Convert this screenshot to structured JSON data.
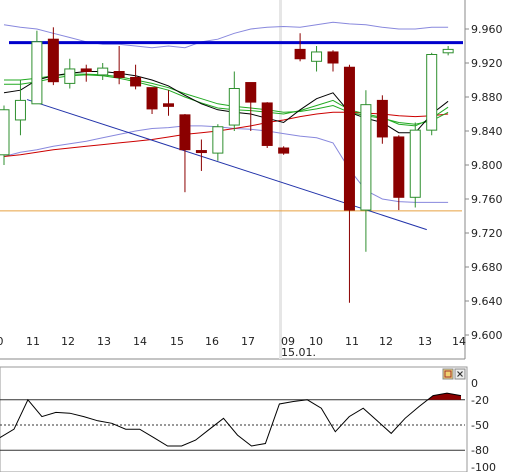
{
  "chart_data": [
    {
      "type": "candlestick",
      "x_ticks": [
        "0",
        "11",
        "12",
        "13",
        "14",
        "15",
        "16",
        "17",
        "09",
        "10",
        "11",
        "12",
        "13",
        "14"
      ],
      "date_label": "15.01.",
      "y_ticks": [
        "9.960",
        "9.920",
        "9.880",
        "9.840",
        "9.800",
        "9.760",
        "9.720",
        "9.680",
        "9.640",
        "9.600"
      ],
      "ylim": [
        9.6,
        9.97
      ],
      "colors": {
        "up": "#2f8f2f",
        "down": "#8b0000",
        "resistance": "#0000cc",
        "trend": "#2233aa",
        "band": "#8888dd",
        "ma_black": "#000000",
        "ma_green": "#22aa22",
        "ma_red": "#cc0000",
        "support": "#e8a040"
      },
      "candles": [
        {
          "o": 9.812,
          "c": 9.865,
          "h": 9.87,
          "l": 9.8
        },
        {
          "o": 9.853,
          "c": 9.876,
          "h": 9.9,
          "l": 9.835
        },
        {
          "o": 9.872,
          "c": 9.945,
          "h": 9.958,
          "l": 9.872
        },
        {
          "o": 9.948,
          "c": 9.898,
          "h": 9.962,
          "l": 9.894
        },
        {
          "o": 9.896,
          "c": 9.913,
          "h": 9.925,
          "l": 9.89
        },
        {
          "o": 9.913,
          "c": 9.91,
          "h": 9.918,
          "l": 9.898
        },
        {
          "o": 9.906,
          "c": 9.914,
          "h": 9.92,
          "l": 9.9
        },
        {
          "o": 9.91,
          "c": 9.903,
          "h": 9.94,
          "l": 9.895
        },
        {
          "o": 9.903,
          "c": 9.893,
          "h": 9.918,
          "l": 9.889
        },
        {
          "o": 9.891,
          "c": 9.866,
          "h": 9.891,
          "l": 9.86
        },
        {
          "o": 9.872,
          "c": 9.869,
          "h": 9.888,
          "l": 9.858
        },
        {
          "o": 9.859,
          "c": 9.818,
          "h": 9.86,
          "l": 9.768
        },
        {
          "o": 9.817,
          "c": 9.815,
          "h": 9.83,
          "l": 9.793
        },
        {
          "o": 9.814,
          "c": 9.845,
          "h": 9.848,
          "l": 9.805
        },
        {
          "o": 9.847,
          "c": 9.89,
          "h": 9.91,
          "l": 9.84
        },
        {
          "o": 9.897,
          "c": 9.874,
          "h": 9.897,
          "l": 9.84
        },
        {
          "o": 9.873,
          "c": 9.823,
          "h": 9.874,
          "l": 9.82
        },
        {
          "o": 9.82,
          "c": 9.814,
          "h": 9.822,
          "l": 9.812
        },
        {
          "o": 9.936,
          "c": 9.925,
          "h": 9.955,
          "l": 9.922
        },
        {
          "o": 9.922,
          "c": 9.933,
          "h": 9.94,
          "l": 9.91
        },
        {
          "o": 9.933,
          "c": 9.92,
          "h": 9.935,
          "l": 9.91
        },
        {
          "o": 9.915,
          "c": 9.747,
          "h": 9.918,
          "l": 9.638
        },
        {
          "o": 9.747,
          "c": 9.871,
          "h": 9.888,
          "l": 9.698
        },
        {
          "o": 9.876,
          "c": 9.833,
          "h": 9.882,
          "l": 9.825
        },
        {
          "o": 9.833,
          "c": 9.762,
          "h": 9.835,
          "l": 9.747
        },
        {
          "o": 9.762,
          "c": 9.841,
          "h": 9.85,
          "l": 9.75
        },
        {
          "o": 9.841,
          "c": 9.93,
          "h": 9.932,
          "l": 9.835
        },
        {
          "o": 9.932,
          "c": 9.936,
          "h": 9.94,
          "l": 9.929
        }
      ],
      "overlays": {
        "resistance": 9.944,
        "support": 9.746,
        "trendline": {
          "from": {
            "i": 1.4,
            "v": 9.877
          },
          "to": {
            "i": 25.7,
            "v": 9.724
          }
        },
        "band_upper": [
          9.965,
          9.962,
          9.96,
          9.955,
          9.95,
          9.945,
          9.942,
          9.942,
          9.94,
          9.938,
          9.94,
          9.938,
          9.945,
          9.948,
          9.955,
          9.96,
          9.962,
          9.963,
          9.962,
          9.965,
          9.968,
          9.966,
          9.965,
          9.962,
          9.96,
          9.96,
          9.962,
          9.962
        ],
        "band_lower": [
          9.81,
          9.815,
          9.818,
          9.822,
          9.825,
          9.828,
          9.832,
          9.836,
          9.84,
          9.843,
          9.844,
          9.846,
          9.846,
          9.845,
          9.843,
          9.842,
          9.84,
          9.837,
          9.834,
          9.832,
          9.826,
          9.795,
          9.77,
          9.76,
          9.757,
          9.756,
          9.756,
          9.756
        ],
        "ma_black": [
          9.885,
          9.888,
          9.9,
          9.905,
          9.908,
          9.91,
          9.91,
          9.908,
          9.905,
          9.9,
          9.893,
          9.882,
          9.872,
          9.865,
          9.862,
          9.86,
          9.855,
          9.85,
          9.865,
          9.878,
          9.885,
          9.862,
          9.855,
          9.85,
          9.838,
          9.838,
          9.86,
          9.875
        ],
        "ma_green": [
          9.895,
          9.895,
          9.898,
          9.902,
          9.905,
          9.906,
          9.905,
          9.902,
          9.898,
          9.893,
          9.888,
          9.88,
          9.873,
          9.867,
          9.865,
          9.864,
          9.862,
          9.86,
          9.864,
          9.87,
          9.876,
          9.865,
          9.86,
          9.856,
          9.848,
          9.846,
          9.855,
          9.868
        ],
        "ma_green2": [
          9.9,
          9.9,
          9.902,
          9.905,
          9.907,
          9.907,
          9.906,
          9.904,
          9.9,
          9.896,
          9.891,
          9.884,
          9.878,
          9.872,
          9.869,
          9.867,
          9.865,
          9.862,
          9.863,
          9.866,
          9.87,
          9.862,
          9.858,
          9.855,
          9.85,
          9.848,
          9.852,
          9.862
        ],
        "ma_red": [
          9.81,
          9.812,
          9.815,
          9.818,
          9.82,
          9.822,
          9.824,
          9.826,
          9.828,
          9.83,
          9.833,
          9.836,
          9.838,
          9.84,
          9.843,
          9.846,
          9.85,
          9.853,
          9.857,
          9.86,
          9.862,
          9.862,
          9.861,
          9.86,
          9.858,
          9.857,
          9.858,
          9.86
        ]
      }
    },
    {
      "type": "line",
      "y_ticks": [
        "0",
        "-20",
        "-50",
        "-80",
        "-100"
      ],
      "ylim": [
        -100,
        0
      ],
      "guides": [
        -20,
        -50,
        -80
      ],
      "fill_color": "#8b0000",
      "values": [
        -65,
        -55,
        -20,
        -40,
        -35,
        -36,
        -40,
        -45,
        -48,
        -55,
        -55,
        -65,
        -75,
        -75,
        -68,
        -55,
        -42,
        -62,
        -75,
        -72,
        -25,
        -22,
        -20,
        -30,
        -58,
        -40,
        -30,
        -45,
        -60,
        -42,
        -28,
        -15,
        -12,
        -15
      ]
    }
  ]
}
